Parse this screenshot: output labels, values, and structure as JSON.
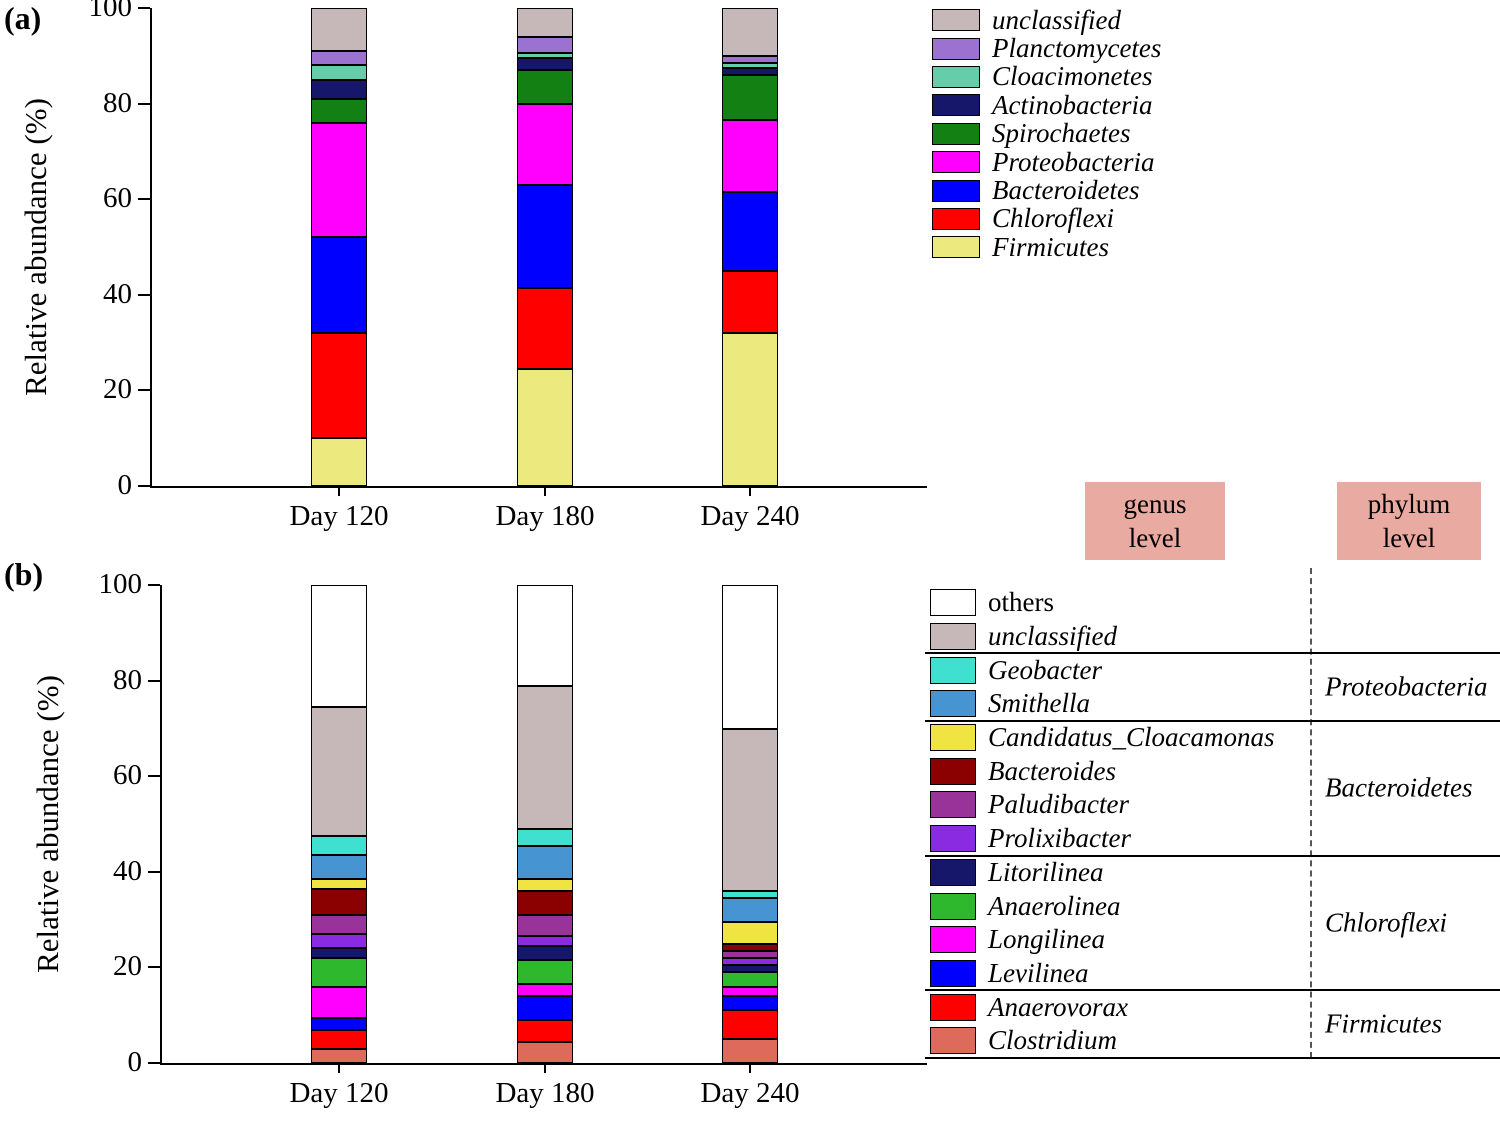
{
  "panel_a": {
    "label": "(a)",
    "ylabel": "Relative abundance (%)"
  },
  "panel_b": {
    "label": "(b)",
    "ylabel": "Relative abundance (%)"
  },
  "labels": {
    "genus_line1": "genus",
    "genus_line2": "level",
    "phylum_line1": "phylum",
    "phylum_line2": "level"
  },
  "colors": {
    "level_box_bg": "#e9aba1"
  },
  "chart_data": [
    {
      "id": "phylum_chart",
      "type": "bar",
      "stacked": true,
      "title": "",
      "xlabel": "",
      "ylabel": "Relative abundance (%)",
      "ylim": [
        0,
        100
      ],
      "yticks": [
        0,
        20,
        40,
        60,
        80,
        100
      ],
      "legend_position": "top-right",
      "categories": [
        "Day 120",
        "Day 180",
        "Day 240"
      ],
      "series": [
        {
          "name": "Firmicutes",
          "color": "#ece97e",
          "italic": true,
          "values": [
            10,
            24.5,
            32
          ]
        },
        {
          "name": "Chloroflexi",
          "color": "#ff0000",
          "italic": true,
          "values": [
            22,
            17,
            13
          ]
        },
        {
          "name": "Bacteroidetes",
          "color": "#0000ff",
          "italic": true,
          "values": [
            20,
            21.5,
            16.5
          ]
        },
        {
          "name": "Proteobacteria",
          "color": "#ff00ff",
          "italic": true,
          "values": [
            24,
            17,
            15
          ]
        },
        {
          "name": "Spirochaetes",
          "color": "#128012",
          "italic": true,
          "values": [
            5,
            7,
            9.5
          ]
        },
        {
          "name": "Actinobacteria",
          "color": "#16166b",
          "italic": true,
          "values": [
            4,
            2.5,
            1.5
          ]
        },
        {
          "name": "Cloacimonetes",
          "color": "#66cdaa",
          "italic": true,
          "values": [
            3,
            1,
            1
          ]
        },
        {
          "name": "Planctomycetes",
          "color": "#9b72cf",
          "italic": true,
          "values": [
            3,
            3.5,
            1.5
          ]
        },
        {
          "name": "unclassified",
          "color": "#c6b8b8",
          "italic": true,
          "values": [
            9,
            6,
            10
          ]
        }
      ]
    },
    {
      "id": "genus_chart",
      "type": "bar",
      "stacked": true,
      "title": "",
      "xlabel": "",
      "ylabel": "Relative abundance (%)",
      "ylim": [
        0,
        100
      ],
      "yticks": [
        0,
        20,
        40,
        60,
        80,
        100
      ],
      "legend_position": "right",
      "categories": [
        "Day 120",
        "Day 180",
        "Day 240"
      ],
      "series": [
        {
          "name": "Clostridium",
          "color": "#dd6a5a",
          "italic": true,
          "values": [
            3,
            4.5,
            5
          ]
        },
        {
          "name": "Anaerovorax",
          "color": "#ff0000",
          "italic": true,
          "values": [
            4,
            4.5,
            6
          ]
        },
        {
          "name": "Levilinea",
          "color": "#0000ff",
          "italic": true,
          "values": [
            2.5,
            5,
            3
          ]
        },
        {
          "name": "Longilinea",
          "color": "#ff00ff",
          "italic": true,
          "values": [
            6.5,
            2.5,
            2
          ]
        },
        {
          "name": "Anaerolinea",
          "color": "#2eb82e",
          "italic": true,
          "values": [
            6,
            5,
            3
          ]
        },
        {
          "name": "Litorilinea",
          "color": "#16166b",
          "italic": true,
          "values": [
            2,
            3,
            1.5
          ]
        },
        {
          "name": "Prolixibacter",
          "color": "#8a2be2",
          "italic": true,
          "values": [
            3,
            2,
            1.5
          ]
        },
        {
          "name": "Paludibacter",
          "color": "#993399",
          "italic": true,
          "values": [
            4,
            4.5,
            1.5
          ]
        },
        {
          "name": "Bacteroides",
          "color": "#8b0000",
          "italic": true,
          "values": [
            5.5,
            5,
            1.5
          ]
        },
        {
          "name": "Candidatus_Cloacamonas",
          "color": "#f0e442",
          "italic": true,
          "values": [
            2,
            2.5,
            4.5
          ]
        },
        {
          "name": "Smithella",
          "color": "#4695d2",
          "italic": true,
          "values": [
            5,
            7,
            5
          ]
        },
        {
          "name": "Geobacter",
          "color": "#40e0d0",
          "italic": true,
          "values": [
            4,
            3.5,
            1.5
          ]
        },
        {
          "name": "unclassified",
          "color": "#c6b8b8",
          "italic": true,
          "values": [
            27,
            30,
            34
          ]
        },
        {
          "name": "others",
          "color": "#ffffff",
          "italic": false,
          "values": [
            25.5,
            21,
            30
          ]
        }
      ],
      "phylum_groups": [
        {
          "label": "Proteobacteria",
          "legend_rows": [
            2,
            3
          ]
        },
        {
          "label": "Bacteroidetes",
          "legend_rows": [
            4,
            7
          ]
        },
        {
          "label": "Chloroflexi",
          "legend_rows": [
            8,
            11
          ]
        },
        {
          "label": "Firmicutes",
          "legend_rows": [
            12,
            13
          ]
        }
      ],
      "legend_separators_after_rows": [
        1,
        3,
        7,
        11,
        13
      ]
    }
  ]
}
